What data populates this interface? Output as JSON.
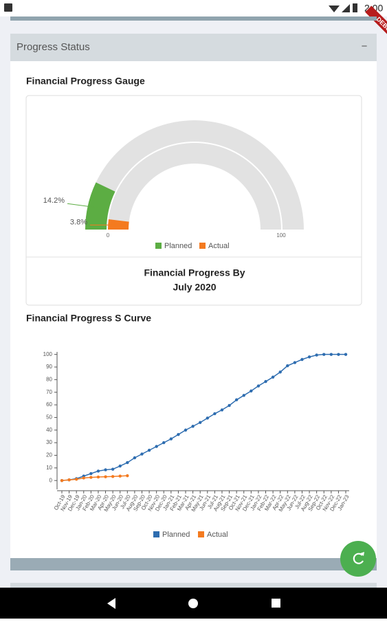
{
  "app": {
    "status_time": "2:00",
    "debug_banner": "DEBUG",
    "panel_title": "Progress Status",
    "collapse_icon": "−"
  },
  "chart_data": [
    {
      "type": "gauge",
      "title": "Financial Progress Gauge",
      "caption": [
        "Financial Progress By",
        "July 2020"
      ],
      "ylim": [
        0,
        100
      ],
      "yticks": [
        0,
        100
      ],
      "legend": "bottom",
      "series": [
        {
          "name": "Planned",
          "color": "#5cad43",
          "values": [
            14.2
          ],
          "value_labels": [
            "14.2%"
          ]
        },
        {
          "name": "Actual",
          "color": "#f47a1f",
          "values": [
            3.8
          ],
          "value_labels": [
            "3.8%"
          ]
        }
      ]
    },
    {
      "type": "line",
      "title": "Financial Progress S Curve",
      "legend": "bottom",
      "categories": [
        "Oct-19",
        "Nov-19",
        "Dec-19",
        "Jan-20",
        "Feb-20",
        "Mar-20",
        "Apr-20",
        "May-20",
        "Jun-20",
        "Jul-20",
        "Aug-20",
        "Sep-20",
        "Oct-20",
        "Nov-20",
        "Dec-20",
        "Jan-21",
        "Feb-21",
        "Mar-21",
        "Apr-21",
        "May-21",
        "Jun-21",
        "Jul-21",
        "Aug-21",
        "Sep-21",
        "Oct-21",
        "Nov-21",
        "Dec-21",
        "Jan-22",
        "Feb-22",
        "Mar-22",
        "Apr-22",
        "May-22",
        "Jun-22",
        "Jul-22",
        "Aug-22",
        "Sep-22",
        "Oct-22",
        "Nov-22",
        "Dec-22",
        "Jan-23"
      ],
      "ylim": [
        -7,
        102
      ],
      "yticks": [
        0,
        10,
        20,
        30,
        40,
        50,
        60,
        70,
        80,
        90,
        100
      ],
      "series": [
        {
          "name": "Planned",
          "color": "#2e6db0",
          "values": [
            0,
            0.5,
            1.5,
            3.5,
            5.5,
            7.5,
            8.5,
            9,
            11.5,
            14.2,
            18,
            21,
            24,
            27,
            30,
            33,
            36.5,
            40,
            43,
            46,
            49.5,
            53,
            56,
            59.5,
            64,
            67.5,
            71,
            75,
            78.5,
            82,
            86,
            91,
            93.5,
            96,
            98,
            99.5,
            100,
            100,
            100,
            100
          ]
        },
        {
          "name": "Actual",
          "color": "#f47a1f",
          "values": [
            0,
            0.5,
            1,
            2,
            2.5,
            2.8,
            3,
            3.2,
            3.5,
            3.8,
            null,
            null,
            null,
            null,
            null,
            null,
            null,
            null,
            null,
            null,
            null,
            null,
            null,
            null,
            null,
            null,
            null,
            null,
            null,
            null,
            null,
            null,
            null,
            null,
            null,
            null,
            null,
            null,
            null,
            null
          ]
        }
      ]
    }
  ]
}
